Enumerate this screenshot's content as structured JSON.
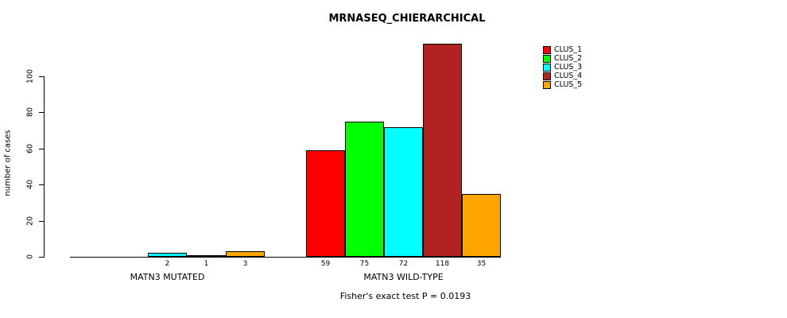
{
  "chart_data": {
    "type": "bar",
    "title": "MRNASEQ_CHIERARCHICAL",
    "ylabel": "number of cases",
    "xlabel": "",
    "annotation": "Fisher's exact test P = 0.0193",
    "yticks": [
      0,
      20,
      40,
      60,
      80,
      100
    ],
    "ylim": [
      0,
      120
    ],
    "grid": false,
    "legend_position": "top-right",
    "series": [
      "CLUS_1",
      "CLUS_2",
      "CLUS_3",
      "CLUS_4",
      "CLUS_5"
    ],
    "series_colors": [
      "#FF0000",
      "#00FF00",
      "#00FFFF",
      "#B22222",
      "#FFA500"
    ],
    "groups": [
      {
        "label": "MATN3 MUTATED",
        "values": [
          0,
          0,
          2,
          1,
          3
        ],
        "bar_labels": [
          "",
          "",
          "2",
          "1",
          "3"
        ]
      },
      {
        "label": "MATN3 WILD-TYPE",
        "values": [
          59,
          75,
          72,
          118,
          35
        ],
        "bar_labels": [
          "59",
          "75",
          "72",
          "118",
          "35"
        ]
      }
    ]
  }
}
